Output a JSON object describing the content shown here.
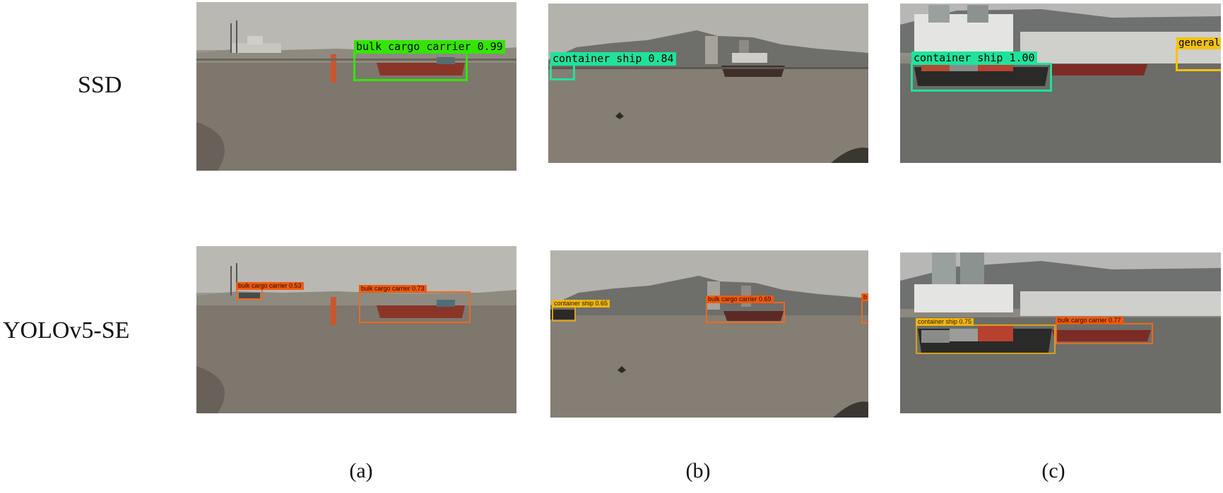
{
  "rows": [
    {
      "label": "SSD"
    },
    {
      "label": "YOLOv5-SE"
    }
  ],
  "columns": [
    {
      "label": "(a)"
    },
    {
      "label": "(b)"
    },
    {
      "label": "(c)"
    }
  ],
  "panels": {
    "ssd_a": {
      "detections": [
        {
          "label": "bulk cargo carrier 0.99"
        }
      ]
    },
    "ssd_b": {
      "detections": [
        {
          "label": "container ship 0.84"
        }
      ]
    },
    "ssd_c": {
      "detections": [
        {
          "label": "container ship 1.00"
        },
        {
          "label": "general c"
        }
      ]
    },
    "yolo_a": {
      "detections": [
        {
          "label": "bulk cargo carrier 0.53"
        },
        {
          "label": "bulk cargo carrier 0.73"
        }
      ]
    },
    "yolo_b": {
      "detections": [
        {
          "label": "container ship 0.65"
        },
        {
          "label": "bulk cargo carrier 0.69"
        },
        {
          "label": "b"
        }
      ]
    },
    "yolo_c": {
      "detections": [
        {
          "label": "container ship 0.75"
        },
        {
          "label": "bulk cargo carrier 0.77"
        }
      ]
    }
  },
  "colors": {
    "ssd_bulk": "#32e600",
    "ssd_container": "#1fe39a",
    "ssd_general": "#f4c20d",
    "yolo_bulk": "#ef6a1c",
    "yolo_container": "#d9a21a"
  }
}
